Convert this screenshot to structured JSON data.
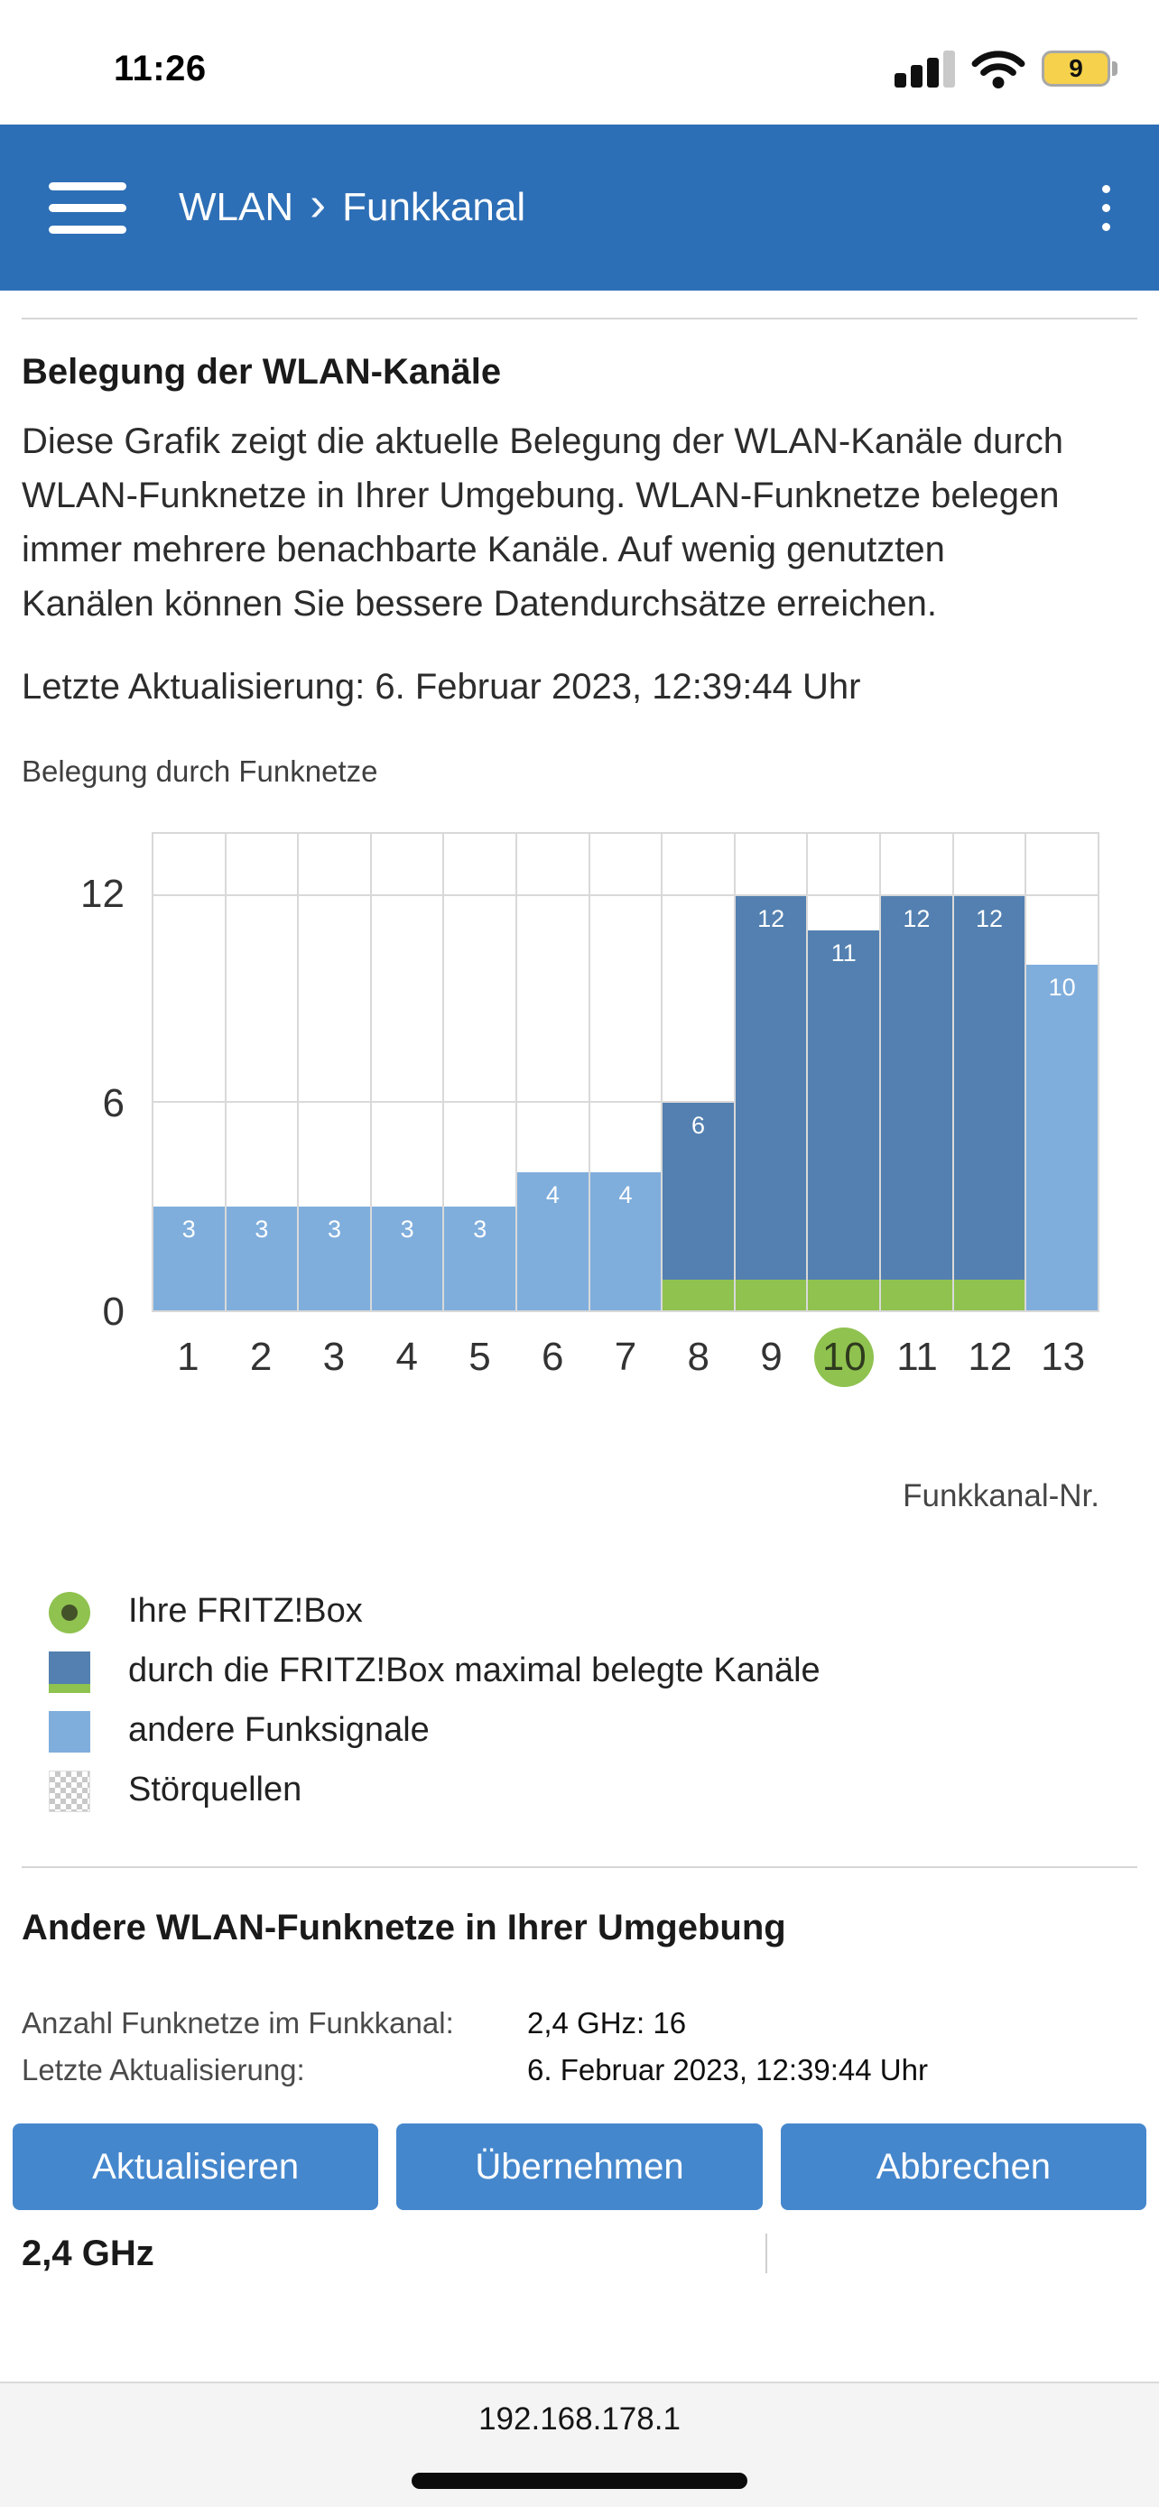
{
  "status_bar": {
    "time": "11:26",
    "battery_level": "9"
  },
  "header": {
    "breadcrumb": {
      "section": "WLAN",
      "separator": "›",
      "page": "Funkkanal"
    }
  },
  "intro": {
    "heading": "Belegung der WLAN-Kanäle",
    "description": "Diese Grafik zeigt die aktuelle Belegung der WLAN-Kanäle durch WLAN-Funknetze in Ihrer Umgebung. WLAN-Funknetze belegen immer mehrere benachbarte Kanäle. Auf wenig genutzten Kanälen können Sie bessere Datendurchsätze erreichen.",
    "last_update": "Letzte Aktualisierung: 6. Februar 2023, 12:39:44 Uhr"
  },
  "chart_data": {
    "type": "bar",
    "title": "Belegung durch Funknetze",
    "xlabel": "Funkkanal-Nr.",
    "ylabel": "",
    "categories": [
      "1",
      "2",
      "3",
      "4",
      "5",
      "6",
      "7",
      "8",
      "9",
      "10",
      "11",
      "12",
      "13"
    ],
    "values": [
      3,
      3,
      3,
      3,
      3,
      4,
      4,
      6,
      12,
      11,
      12,
      12,
      10
    ],
    "yticks": [
      12,
      6,
      0
    ],
    "ylim": [
      0,
      13.8
    ],
    "grid": true,
    "value_labels": "inside-top-white",
    "fritzbox_channel": "10",
    "fritzbox_occupied_channels": [
      "8",
      "9",
      "10",
      "11",
      "12"
    ],
    "colors": {
      "other_signals": "#7faedc",
      "fritz_occupied": "#5380b0",
      "fritz_green": "#8fc24f"
    }
  },
  "legend": {
    "items": [
      {
        "icon": "fritzbox-position-icon",
        "label": "Ihre FRITZ!Box"
      },
      {
        "icon": "fritz-occupied-swatch",
        "label": "durch die FRITZ!Box maximal belegte Kanäle"
      },
      {
        "icon": "other-signals-swatch",
        "label": "andere Funksignale"
      },
      {
        "icon": "interference-swatch",
        "label": "Störquellen"
      }
    ]
  },
  "other_networks": {
    "heading": "Andere WLAN-Funknetze in Ihrer Umgebung",
    "rows": [
      {
        "label": "Anzahl Funknetze im Funkkanal:",
        "value": "2,4 GHz: 16"
      },
      {
        "label": "Letzte Aktualisierung:",
        "value": "6. Februar 2023, 12:39:44 Uhr"
      }
    ],
    "partial_section_label": "2,4 GHz"
  },
  "actions": {
    "refresh": "Aktualisieren",
    "apply": "Übernehmen",
    "cancel": "Abbrechen"
  },
  "browser": {
    "url": "192.168.178.1"
  },
  "colors": {
    "header_blue": "#2d6fb6",
    "button_blue": "#4587cd",
    "bar_dark_blue": "#5380b0",
    "bar_light_blue": "#7faedc",
    "green": "#8fc24f",
    "battery_yellow": "#f6d14b"
  }
}
